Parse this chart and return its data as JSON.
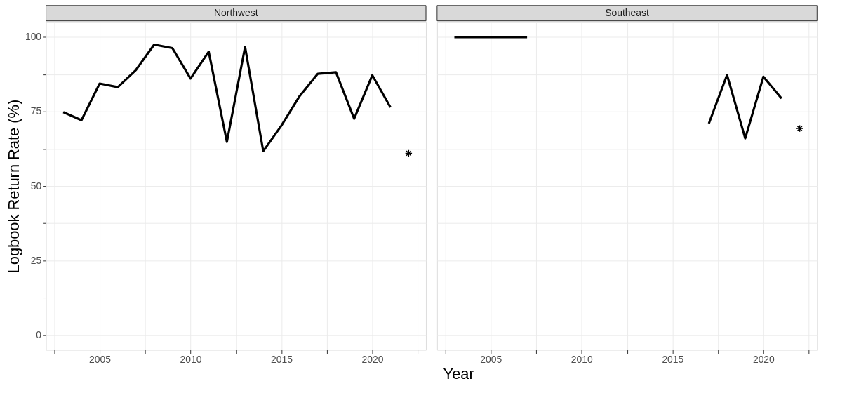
{
  "chart_data": [
    {
      "type": "line",
      "title": "Northwest",
      "xlabel": "Year",
      "ylabel": "Logbook Return Rate (%)",
      "xlim": [
        2002.05,
        2022.95
      ],
      "ylim": [
        -5,
        105
      ],
      "xticks": [
        {
          "value": 2002.5,
          "label": null
        },
        2005,
        {
          "value": 2007.5,
          "label": null
        },
        2010,
        {
          "value": 2012.5,
          "label": null
        },
        2015,
        {
          "value": 2017.5,
          "label": null
        },
        2020,
        {
          "value": 2022.5,
          "label": null
        }
      ],
      "yticks": [
        0,
        {
          "value": 12.5,
          "label": null
        },
        25,
        {
          "value": 37.5,
          "label": null
        },
        50,
        {
          "value": 62.5,
          "label": null
        },
        75,
        {
          "value": 87.5,
          "label": null
        },
        100
      ],
      "grid": true,
      "series": [
        {
          "color": "#000000",
          "x": [
            2003,
            2004,
            2005,
            2006,
            2007,
            2008,
            2009,
            2010,
            2011,
            2012,
            2013,
            2014,
            2015,
            2016,
            2017,
            2018,
            2019,
            2020,
            2021
          ],
          "values": [
            74.8,
            72.1,
            84.4,
            83.2,
            89.0,
            97.5,
            96.3,
            86.1,
            95.1,
            64.8,
            96.7,
            61.7,
            70.3,
            80.2,
            87.7,
            88.2,
            72.6,
            87.2,
            76.4
          ]
        },
        {
          "type": "scatter",
          "marker": "cross",
          "color": "#000000",
          "x": [
            2022
          ],
          "values": [
            61.0
          ]
        }
      ]
    },
    {
      "type": "line",
      "title": "Southeast",
      "xlim": [
        2002.05,
        2022.95
      ],
      "ylim": [
        -5,
        105
      ],
      "xticks": [
        {
          "value": 2002.5,
          "label": null
        },
        2005,
        {
          "value": 2007.5,
          "label": null
        },
        2010,
        {
          "value": 2012.5,
          "label": null
        },
        2015,
        {
          "value": 2017.5,
          "label": null
        },
        2020,
        {
          "value": 2022.5,
          "label": null
        }
      ],
      "yticks": [
        0,
        {
          "value": 12.5,
          "label": null
        },
        25,
        {
          "value": 37.5,
          "label": null
        },
        50,
        {
          "value": 62.5,
          "label": null
        },
        75,
        {
          "value": 87.5,
          "label": null
        },
        100
      ],
      "grid": true,
      "tick_labels": "x",
      "series": [
        {
          "color": "#000000",
          "x": [
            2003,
            2004,
            2005,
            2006,
            2007,
            2008,
            2009,
            2010,
            2011,
            2012,
            2013,
            2014,
            2015,
            2016,
            2017,
            2018,
            2019,
            2020,
            2021
          ],
          "values": [
            100,
            100,
            100,
            100,
            100,
            null,
            null,
            null,
            null,
            null,
            null,
            null,
            null,
            null,
            71.0,
            87.3,
            66.0,
            86.7,
            79.4
          ]
        },
        {
          "type": "scatter",
          "marker": "cross",
          "color": "#000000",
          "x": [
            2022
          ],
          "values": [
            69.3
          ]
        }
      ]
    }
  ]
}
